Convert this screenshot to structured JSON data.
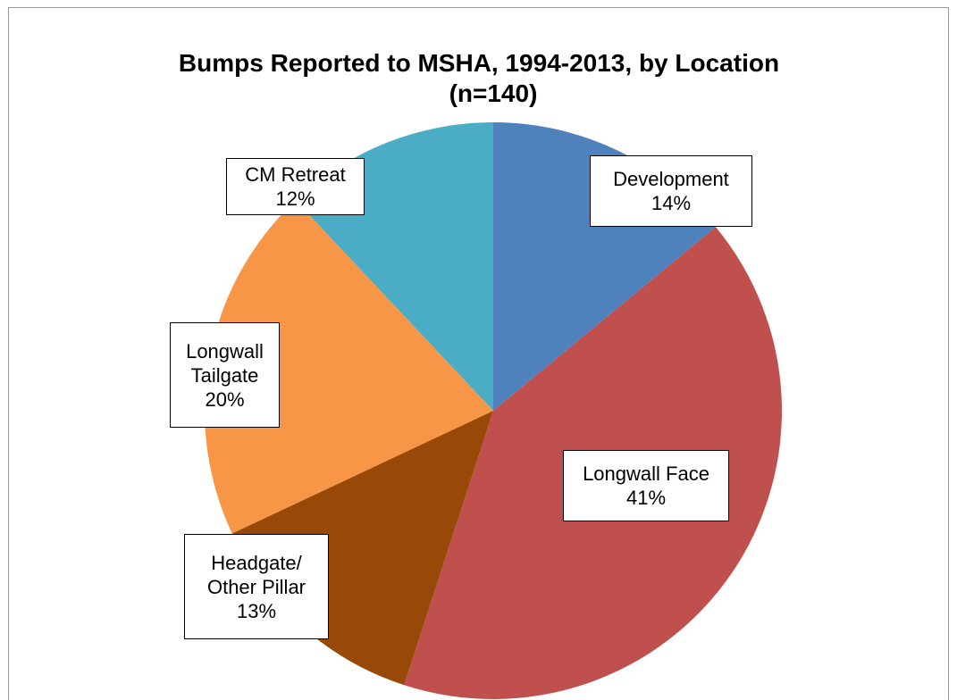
{
  "chart_data": {
    "type": "pie",
    "title": "Bumps Reported to MSHA, 1994-2013, by Location",
    "subtitle": "(n=140)",
    "categories": [
      "Development",
      "Longwall Face",
      "Headgate/ Other Pillar",
      "Longwall Tailgate",
      "CM Retreat"
    ],
    "values": [
      14,
      41,
      13,
      20,
      12
    ],
    "value_labels": [
      "14%",
      "41%",
      "13%",
      "20%",
      "12%"
    ],
    "colors": [
      "#4f81bd",
      "#c0504d",
      "#984807",
      "#f79646",
      "#4bacc6"
    ]
  }
}
